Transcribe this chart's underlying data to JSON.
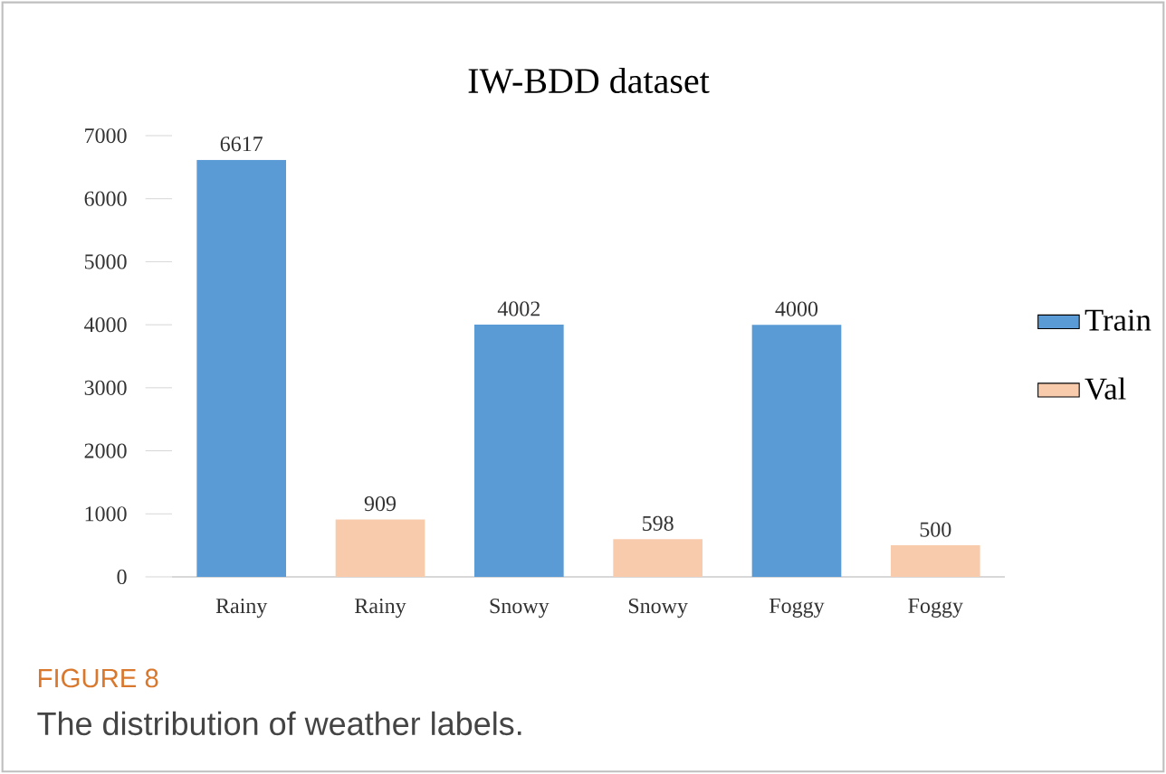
{
  "chart_data": {
    "type": "bar",
    "title": "IW-BDD dataset",
    "categories": [
      "Rainy",
      "Rainy",
      "Snowy",
      "Snowy",
      "Foggy",
      "Foggy"
    ],
    "series": [
      {
        "name": "Train",
        "color": "#5b9bd5",
        "values": [
          6617,
          null,
          4002,
          null,
          4000,
          null
        ]
      },
      {
        "name": "Val",
        "color": "#f8cbad",
        "values": [
          null,
          909,
          null,
          598,
          null,
          500
        ]
      }
    ],
    "ylim": [
      0,
      7000
    ],
    "yticks": [
      0,
      1000,
      2000,
      3000,
      4000,
      5000,
      6000,
      7000
    ],
    "data_labels": true,
    "legend": "right",
    "annotations": [
      "FIGURE 8",
      "The distribution of weather labels."
    ]
  }
}
